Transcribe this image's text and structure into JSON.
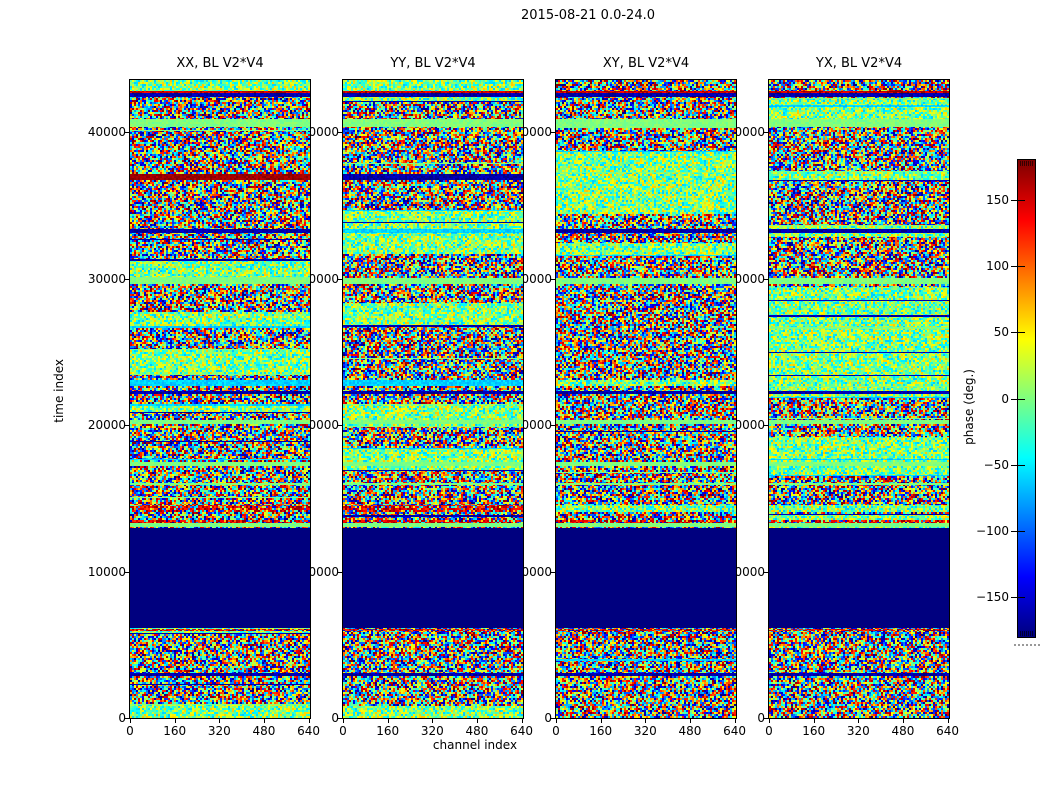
{
  "figure": {
    "background": "#ffffff",
    "border_color": "#000000",
    "flag_block_color": "#000080"
  },
  "chart_data": {
    "type": "heatmap",
    "title": "2015-08-21 0.0-24.0",
    "xlabel": "channel index",
    "ylabel": "time index",
    "xlim": [
      0,
      645
    ],
    "ylim": [
      0,
      43550
    ],
    "x_ticks": [
      0,
      160,
      320,
      480,
      640
    ],
    "y_ticks": [
      0,
      10000,
      20000,
      30000,
      40000
    ],
    "colormap": "jet",
    "value_range": [
      -180,
      180
    ],
    "grid": false,
    "panels": [
      {
        "label": "XX, BL V2*V4",
        "pol": "XX",
        "seed": 11
      },
      {
        "label": "YY, BL V2*V4",
        "pol": "YY",
        "seed": 23
      },
      {
        "label": "XY, BL V2*V4",
        "pol": "XY",
        "seed": 37
      },
      {
        "label": "YX, BL V2*V4",
        "pol": "YX",
        "seed": 49
      }
    ],
    "colorbar": {
      "label": "phase (deg.)",
      "ticks": [
        150,
        100,
        50,
        0,
        -50,
        -100,
        -150
      ],
      "range": [
        -180,
        180
      ],
      "position": "right"
    },
    "features": {
      "description": "random phase noise over channel/time with horizontal banded structure, identical y tick labels drawn per panel",
      "flagged_block": {
        "t_from": 12980,
        "t_to": 6150,
        "value": -180
      },
      "bands": [
        {
          "t_from": 42780,
          "t_to": 42650,
          "style": "red"
        },
        {
          "t_from": 42650,
          "t_to": 42420,
          "style": "blue"
        },
        {
          "t_from": 40890,
          "t_to": 40350,
          "style": "green"
        },
        {
          "t_from": 37150,
          "t_to": 36700,
          "style": {
            "XX": "darkred",
            "YY": "blue",
            "XY": "green-noise",
            "YX": "green-noise"
          }
        },
        {
          "t_from": 33400,
          "t_to": 33100,
          "style": {
            "XX": "blue",
            "YY": "cyan",
            "XY": "blue",
            "YX": "blue"
          }
        },
        {
          "t_from": 30050,
          "t_to": 29620,
          "style": "green"
        },
        {
          "t_from": 23100,
          "t_to": 22650,
          "style": {
            "XX": "cyan",
            "YY": "cyan",
            "XY": "green-noise",
            "YX": "green-noise"
          }
        },
        {
          "t_from": 22330,
          "t_to": 22100,
          "style": "blue"
        },
        {
          "t_from": 20350,
          "t_to": 20060,
          "style": "green"
        },
        {
          "t_from": 17490,
          "t_to": 17200,
          "style": "green"
        },
        {
          "t_from": 16060,
          "t_to": 15910,
          "style": "green"
        },
        {
          "t_from": 14550,
          "t_to": 14050,
          "style": {
            "XX": "red-noise",
            "YY": "red-noise",
            "XY": "green-noise",
            "YX": "green-noise"
          }
        },
        {
          "t_from": 13530,
          "t_to": 13290,
          "style": "red-noise"
        },
        {
          "t_from": 13280,
          "t_to": 13010,
          "style": "green"
        },
        {
          "t_from": 6100,
          "t_to": 5920,
          "style": "red-noise"
        },
        {
          "t_from": 3060,
          "t_to": 2860,
          "style": "blue"
        }
      ]
    }
  }
}
